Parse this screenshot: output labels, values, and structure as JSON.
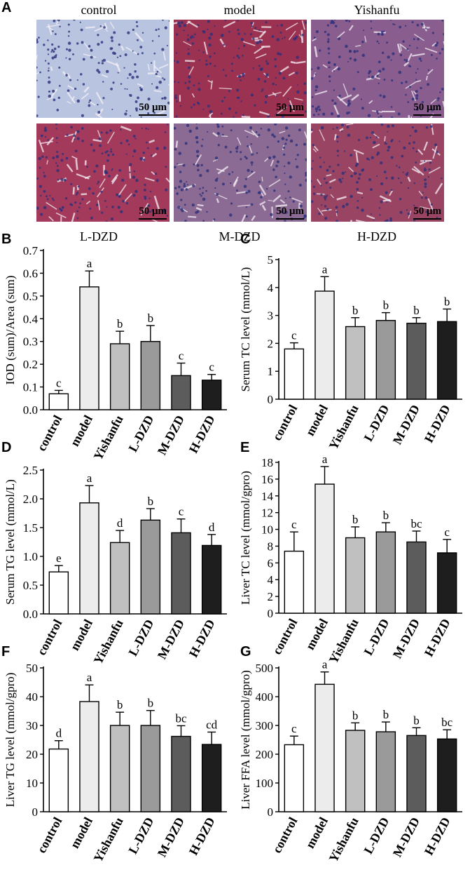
{
  "panel_letters": [
    "A",
    "B",
    "C",
    "D",
    "E",
    "F",
    "G"
  ],
  "panel_a": {
    "top_labels": [
      "control",
      "model",
      "Yishanfu"
    ],
    "bottom_labels": [
      "L-DZD",
      "M-DZD",
      "H-DZD"
    ],
    "scale_bar": "50 μm",
    "tissue_colors": {
      "control": "#b9c4e0",
      "model": "#9c3251",
      "Yishanfu": "#8a5d8f",
      "L-DZD": "#a33a5c",
      "M-DZD": "#8b6a93",
      "H-DZD": "#9a4463"
    }
  },
  "bar_colors": [
    "#ffffff",
    "#ececec",
    "#c0c0c0",
    "#9a9a9a",
    "#5c5c5c",
    "#1e1e1e"
  ],
  "chart_data": [
    {
      "id": "B",
      "type": "bar",
      "categories": [
        "control",
        "model",
        "Yishanfu",
        "L-DZD",
        "M-DZD",
        "H-DZD"
      ],
      "values": [
        0.07,
        0.54,
        0.29,
        0.3,
        0.15,
        0.13
      ],
      "errors": [
        0.015,
        0.07,
        0.055,
        0.07,
        0.055,
        0.025
      ],
      "letters": [
        "c",
        "a",
        "b",
        "b",
        "c",
        "c"
      ],
      "ylabel": "IOD (sum)/Area (sum)",
      "ylim": [
        0,
        0.7
      ],
      "yticks": [
        "0.0",
        "0.1",
        "0.2",
        "0.3",
        "0.4",
        "0.5",
        "0.6",
        "0.7"
      ]
    },
    {
      "id": "C",
      "type": "bar",
      "categories": [
        "control",
        "model",
        "Yishanfu",
        "L-DZD",
        "M-DZD",
        "H-DZD"
      ],
      "values": [
        1.8,
        3.87,
        2.6,
        2.82,
        2.72,
        2.78
      ],
      "errors": [
        0.22,
        0.52,
        0.32,
        0.28,
        0.2,
        0.45
      ],
      "letters": [
        "c",
        "a",
        "b",
        "b",
        "b",
        "b"
      ],
      "ylabel": "Serum TC level (mmol/L)",
      "ylim": [
        0,
        5
      ],
      "yticks": [
        "0",
        "1",
        "2",
        "3",
        "4",
        "5"
      ]
    },
    {
      "id": "D",
      "type": "bar",
      "categories": [
        "control",
        "model",
        "Yishanfu",
        "L-DZD",
        "M-DZD",
        "H-DZD"
      ],
      "values": [
        0.73,
        1.93,
        1.24,
        1.63,
        1.41,
        1.19
      ],
      "errors": [
        0.11,
        0.3,
        0.21,
        0.2,
        0.24,
        0.19
      ],
      "letters": [
        "e",
        "a",
        "d",
        "b",
        "c",
        "d"
      ],
      "ylabel": "Serum TG level (mmol/L)",
      "ylim": [
        0,
        2.5
      ],
      "yticks": [
        "0.0",
        "0.5",
        "1.0",
        "1.5",
        "2.0",
        "2.5"
      ]
    },
    {
      "id": "E",
      "type": "bar",
      "categories": [
        "control",
        "model",
        "Yishanfu",
        "L-DZD",
        "M-DZD",
        "H-DZD"
      ],
      "values": [
        7.4,
        15.4,
        9.0,
        9.7,
        8.5,
        7.2
      ],
      "errors": [
        2.3,
        2.1,
        1.3,
        1.1,
        1.3,
        1.6
      ],
      "letters": [
        "c",
        "a",
        "b",
        "b",
        "bc",
        "c"
      ],
      "ylabel": "Liver TC level (mmol/gpro)",
      "ylim": [
        0,
        18
      ],
      "yticks": [
        "0",
        "2",
        "4",
        "6",
        "8",
        "10",
        "12",
        "14",
        "16",
        "18"
      ]
    },
    {
      "id": "F",
      "type": "bar",
      "categories": [
        "control",
        "model",
        "Yishanfu",
        "L-DZD",
        "M-DZD",
        "H-DZD"
      ],
      "values": [
        21.8,
        38.3,
        30.0,
        30.0,
        26.2,
        23.4
      ],
      "errors": [
        2.9,
        5.8,
        4.6,
        5.2,
        3.7,
        4.3
      ],
      "letters": [
        "d",
        "a",
        "b",
        "b",
        "bc",
        "cd"
      ],
      "ylabel": "Liver TG level (mmol/gpro)",
      "ylim": [
        0,
        50
      ],
      "yticks": [
        "0",
        "10",
        "20",
        "30",
        "40",
        "50"
      ]
    },
    {
      "id": "G",
      "type": "bar",
      "categories": [
        "control",
        "model",
        "Yishanfu",
        "L-DZD",
        "M-DZD",
        "H-DZD"
      ],
      "values": [
        233,
        443,
        283,
        278,
        265,
        253
      ],
      "errors": [
        30,
        43,
        26,
        34,
        27,
        32
      ],
      "letters": [
        "c",
        "a",
        "b",
        "b",
        "b",
        "bc"
      ],
      "ylabel": "Liver FFA level (mmol/gpro)",
      "ylim": [
        0,
        500
      ],
      "yticks": [
        "0",
        "100",
        "200",
        "300",
        "400",
        "500"
      ]
    }
  ]
}
